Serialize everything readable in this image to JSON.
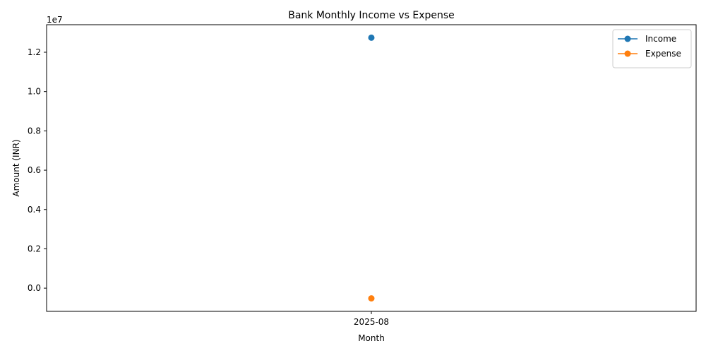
{
  "chart_data": {
    "type": "line",
    "title": "Bank Monthly Income vs Expense",
    "xlabel": "Month",
    "ylabel": "Amount (INR)",
    "y_multiplier_label": "1e7",
    "categories": [
      "2025-08"
    ],
    "series": [
      {
        "name": "Income",
        "values": [
          12740000
        ],
        "color": "#1f77b4"
      },
      {
        "name": "Expense",
        "values": [
          -520000
        ],
        "color": "#ff7f0e"
      }
    ],
    "ylim": [
      -1180000,
      13400000
    ],
    "y_ticks": [
      0,
      2000000,
      4000000,
      6000000,
      8000000,
      10000000,
      12000000
    ],
    "y_tick_labels": [
      "0.0",
      "0.2",
      "0.4",
      "0.6",
      "0.8",
      "1.0",
      "1.2"
    ],
    "grid": false,
    "legend": "top-right"
  }
}
